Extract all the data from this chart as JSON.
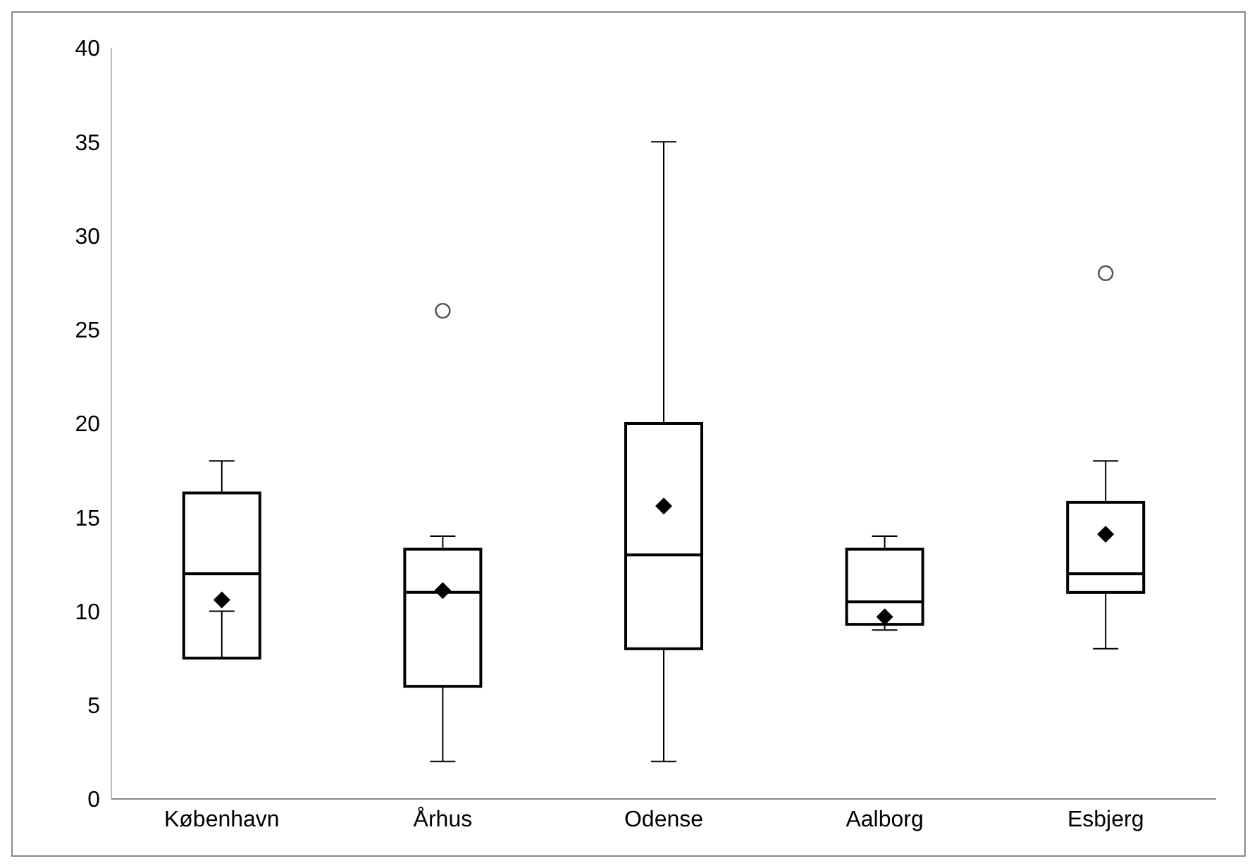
{
  "chart_data": {
    "type": "box",
    "categories": [
      "København",
      "Århus",
      "Odense",
      "Aalborg",
      "Esbjerg"
    ],
    "boxes": [
      {
        "low": 10,
        "q1": 7.5,
        "median": 12,
        "q3": 16.3,
        "high": 18,
        "mean": 10.6
      },
      {
        "low": 2,
        "q1": 6,
        "median": 11,
        "q3": 13.3,
        "high": 14,
        "mean": 11.1,
        "outliers": [
          26
        ]
      },
      {
        "low": 2,
        "q1": 8,
        "median": 13,
        "q3": 20,
        "high": 35,
        "mean": 15.6
      },
      {
        "low": 9,
        "q1": 9.3,
        "median": 10.5,
        "q3": 13.3,
        "high": 14,
        "mean": 9.7
      },
      {
        "low": 8,
        "q1": 11,
        "median": 12,
        "q3": 15.8,
        "high": 18,
        "mean": 14.1,
        "outliers": [
          28
        ]
      }
    ],
    "ylim": [
      0,
      40
    ],
    "yticks": [
      0,
      5,
      10,
      15,
      20,
      25,
      30,
      35,
      40
    ],
    "grid": false,
    "legend": false,
    "color": "#000000"
  }
}
